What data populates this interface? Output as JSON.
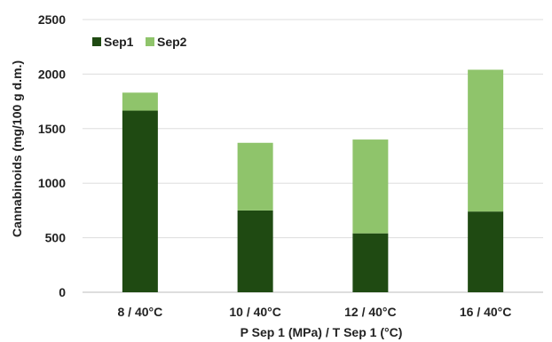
{
  "chart_data": {
    "type": "bar",
    "stacked": true,
    "categories": [
      "8 / 40°C",
      "10 / 40°C",
      "12 / 40°C",
      "16 / 40°C"
    ],
    "series": [
      {
        "name": "Sep1",
        "color": "#1f4a12",
        "values": [
          1665,
          750,
          540,
          740
        ]
      },
      {
        "name": "Sep2",
        "color": "#8fc46b",
        "values": [
          165,
          620,
          860,
          1300
        ]
      }
    ],
    "xlabel": "P Sep 1 (MPa) / T Sep 1 (°C)",
    "ylabel": "Cannabinoids (mg/100 g d.m.)",
    "ylim": [
      0,
      2500
    ],
    "yticks": [
      0,
      500,
      1000,
      1500,
      2000,
      2500
    ],
    "grid": true,
    "legend": "top-left"
  }
}
